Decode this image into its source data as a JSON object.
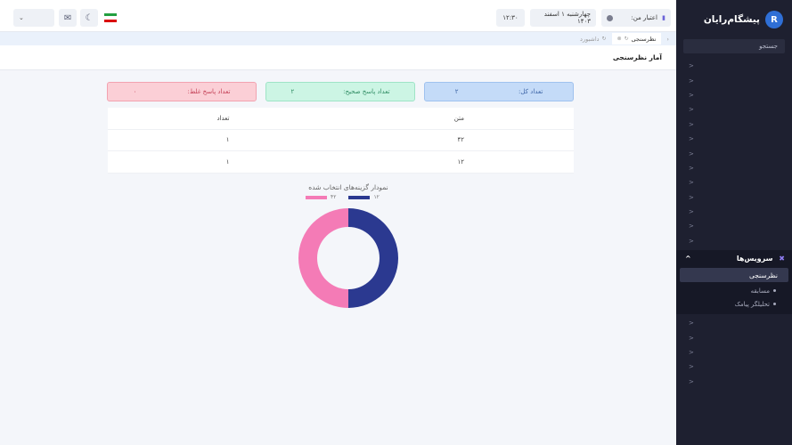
{
  "sidebar": {
    "brand": "پیشگام‌رایان",
    "search_label": "جستجو",
    "group_label": "سرویس‌ها",
    "active_item": "نظرسنجی",
    "sub_items": [
      "مسابقه",
      "تحلیلگر پیامک"
    ]
  },
  "topbar": {
    "credit_label": "اعتبار من:",
    "date": "چهارشنبه ۱ اسفند ۱۴۰۳",
    "time": "۱۲:۳۰"
  },
  "tabs": [
    {
      "label": "نظرسنجی"
    },
    {
      "label": "داشبورد"
    }
  ],
  "page": {
    "title": "آمار نظرسنجی"
  },
  "stats": {
    "total_label": "تعداد کل:",
    "total_value": "۲",
    "correct_label": "تعداد پاسخ صحیح:",
    "correct_value": "۲",
    "wrong_label": "تعداد پاسخ غلط:",
    "wrong_value": "۰"
  },
  "table": {
    "headers": [
      "متن",
      "تعداد"
    ],
    "rows": [
      [
        "۴۲",
        "۱"
      ],
      [
        "۱۲",
        "۱"
      ]
    ]
  },
  "colors": {
    "series_a": "#2b3990",
    "series_b": "#f47bb6"
  },
  "chart_data": {
    "type": "pie",
    "title": "نمودار گزینه‌های انتخاب شده",
    "categories": [
      "۱۲",
      "۴۲"
    ],
    "values": [
      1,
      1
    ],
    "colors": [
      "#2b3990",
      "#f47bb6"
    ],
    "legend": "top"
  }
}
